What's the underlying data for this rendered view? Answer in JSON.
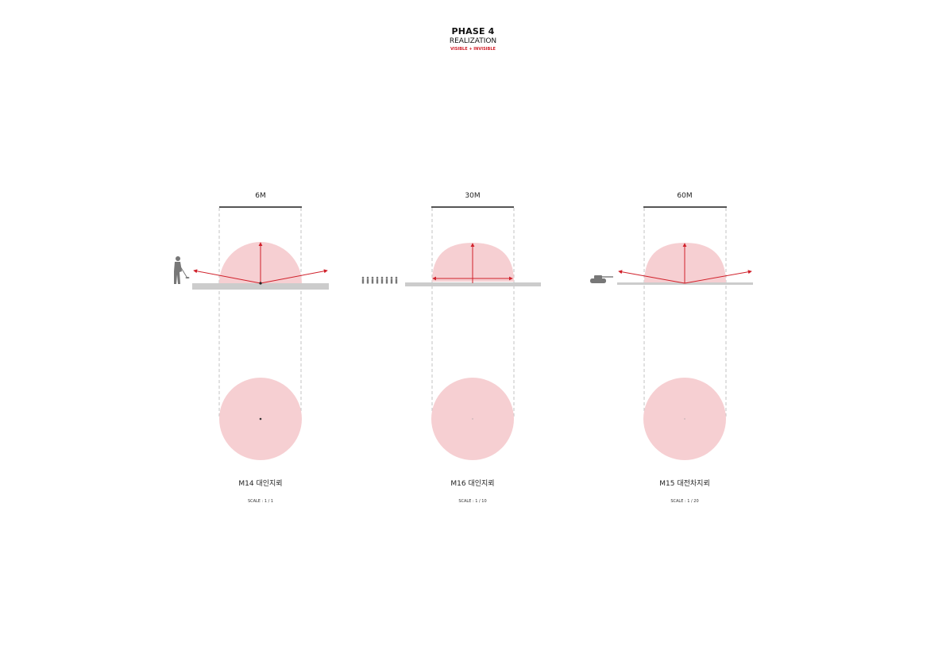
{
  "header": {
    "phase": "PHASE 4",
    "subtitle": "REALIZATION",
    "tagline": "VISIBLE + INVISIBLE"
  },
  "colors": {
    "zone_fill": "#f6cfd2",
    "vector": "#d0202a",
    "ground": "#cccccc",
    "dimension_bar": "#555555",
    "guide": "#b5b5b5",
    "icon": "#777777"
  },
  "panels": [
    {
      "id": "m14",
      "dimension": "6M",
      "title": "M14 대인지뢰",
      "scale": "SCALE : 1 / 1",
      "target_icon": "soldier-icon"
    },
    {
      "id": "m16",
      "dimension": "30M",
      "title": "M16 대인지뢰",
      "scale": "SCALE : 1 / 10",
      "target_icon": "soldier-group-icon"
    },
    {
      "id": "m15",
      "dimension": "60M",
      "title": "M15 대전차지뢰",
      "scale": "SCALE : 1 / 20",
      "target_icon": "tank-icon"
    }
  ]
}
